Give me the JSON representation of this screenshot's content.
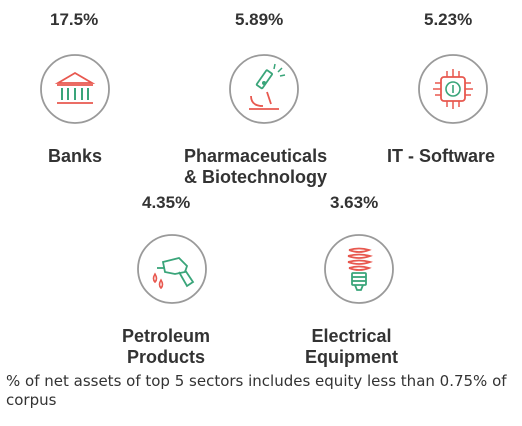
{
  "sectors": [
    {
      "pct": "17.5%",
      "label_lines": [
        "Banks"
      ],
      "icon": "bank-icon"
    },
    {
      "pct": "5.89%",
      "label_lines": [
        "Pharmaceuticals",
        "& Biotechnology"
      ],
      "icon": "microscope-icon"
    },
    {
      "pct": "5.23%",
      "label_lines": [
        "IT - Software"
      ],
      "icon": "chip-icon"
    },
    {
      "pct": "4.35%",
      "label_lines": [
        "Petroleum",
        "Products"
      ],
      "icon": "fuel-nozzle-icon"
    },
    {
      "pct": "3.63%",
      "label_lines": [
        "Electrical",
        "Equipment"
      ],
      "icon": "bulb-icon"
    }
  ],
  "footnote": "% of net assets of top 5 sectors includes equity less than 0.75% of corpus",
  "colors": {
    "icon_ring": "#9a9a9a",
    "accent_red": "#e8584f",
    "accent_green": "#3aa57a",
    "text": "#333333"
  }
}
